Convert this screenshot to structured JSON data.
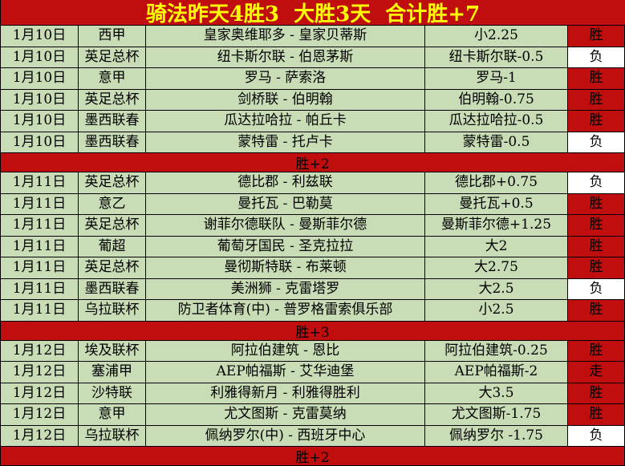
{
  "title": "骑法昨天4胜3  大胜3天  合计胜+7",
  "colors": {
    "accent_red": "#c00d0e",
    "row_green": "#c8dcb5",
    "title_yellow": "#ffff00",
    "lose_cell_bg": "#ffffff",
    "text": "#000000"
  },
  "rows": [
    {
      "kind": "match",
      "date": "1月10日",
      "league": "西甲",
      "match": "皇家奥维耶多 - 皇家贝蒂斯",
      "handicap": "小2.25",
      "result": "胜"
    },
    {
      "kind": "match",
      "date": "1月10日",
      "league": "英足总杯",
      "match": "纽卡斯尔联 - 伯恩茅斯",
      "handicap": "纽卡斯尔联-0.5",
      "result": "负"
    },
    {
      "kind": "match",
      "date": "1月10日",
      "league": "意甲",
      "match": "罗马 - 萨索洛",
      "handicap": "罗马-1",
      "result": "胜"
    },
    {
      "kind": "match",
      "date": "1月10日",
      "league": "英足总杯",
      "match": "剑桥联 - 伯明翰",
      "handicap": "伯明翰-0.75",
      "result": "胜"
    },
    {
      "kind": "match",
      "date": "1月10日",
      "league": "墨西联春",
      "match": "瓜达拉哈拉 - 帕丘卡",
      "handicap": "瓜达拉哈拉-0.5",
      "result": "胜"
    },
    {
      "kind": "match",
      "date": "1月10日",
      "league": "墨西联春",
      "match": "蒙特雷 - 托卢卡",
      "handicap": "蒙特雷-0.5",
      "result": "负"
    },
    {
      "kind": "summary",
      "label": "胜+2"
    },
    {
      "kind": "match",
      "date": "1月11日",
      "league": "英足总杯",
      "match": "德比郡 - 利兹联",
      "handicap": "德比郡+0.75",
      "result": "负"
    },
    {
      "kind": "match",
      "date": "1月11日",
      "league": "意乙",
      "match": "曼托瓦 - 巴勒莫",
      "handicap": "曼托瓦+0.5",
      "result": "胜"
    },
    {
      "kind": "match",
      "date": "1月11日",
      "league": "英足总杯",
      "match": "谢菲尔德联队 - 曼斯菲尔德",
      "handicap": "曼斯菲尔德+1.25",
      "result": "胜"
    },
    {
      "kind": "match",
      "date": "1月11日",
      "league": "葡超",
      "match": "葡萄牙国民 - 圣克拉拉",
      "handicap": "大2",
      "result": "胜"
    },
    {
      "kind": "match",
      "date": "1月11日",
      "league": "英足总杯",
      "match": "曼彻斯特联 - 布莱顿",
      "handicap": "大2.75",
      "result": "胜"
    },
    {
      "kind": "match",
      "date": "1月11日",
      "league": "墨西联春",
      "match": "美洲狮 - 克雷塔罗",
      "handicap": "大2.5",
      "result": "负"
    },
    {
      "kind": "match",
      "date": "1月11日",
      "league": "乌拉联杯",
      "match": "防卫者体育(中) - 普罗格雷索俱乐部",
      "handicap": "小2.5",
      "result": "胜"
    },
    {
      "kind": "summary",
      "label": "胜+3"
    },
    {
      "kind": "match",
      "date": "1月12日",
      "league": "埃及联杯",
      "match": "阿拉伯建筑 - 恩比",
      "handicap": "阿拉伯建筑-0.25",
      "result": "胜"
    },
    {
      "kind": "match",
      "date": "1月12日",
      "league": "塞浦甲",
      "match": "AEP帕福斯 - 艾华迪堡",
      "handicap": "AEP帕福斯-2",
      "result": "走"
    },
    {
      "kind": "match",
      "date": "1月12日",
      "league": "沙特联",
      "match": "利雅得新月 - 利雅得胜利",
      "handicap": "大3.5",
      "result": "胜"
    },
    {
      "kind": "match",
      "date": "1月12日",
      "league": "意甲",
      "match": "尤文图斯 - 克雷莫纳",
      "handicap": "尤文图斯-1.75",
      "result": "胜"
    },
    {
      "kind": "match",
      "date": "1月12日",
      "league": "乌拉联杯",
      "match": "佩纳罗尔(中) - 西班牙中心",
      "handicap": "佩纳罗尔 -1.75",
      "result": "负"
    },
    {
      "kind": "summary",
      "label": "胜+2"
    }
  ]
}
